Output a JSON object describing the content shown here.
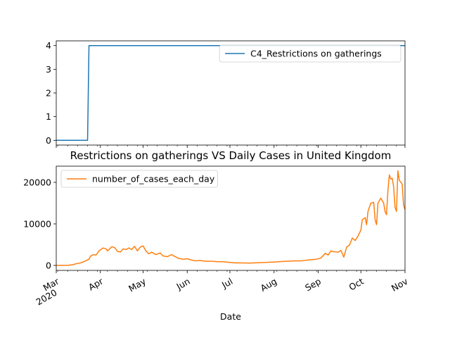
{
  "title": "Restrictions on gatherings VS Daily Cases in United Kingdom",
  "chart_data": [
    {
      "type": "line",
      "series": [
        {
          "name": "C4_Restrictions on gatherings",
          "color": "#1f77b4",
          "points": [
            [
              "2020-03-01",
              0
            ],
            [
              "2020-03-23",
              0
            ],
            [
              "2020-03-24",
              4
            ],
            [
              "2020-11-01",
              4
            ]
          ]
        }
      ],
      "ylim": [
        -0.2,
        4.2
      ],
      "yticks": [
        0,
        1,
        2,
        3,
        4
      ],
      "xlim": [
        "2020-03-01",
        "2020-11-01"
      ],
      "legend": "upper right",
      "grid": false
    },
    {
      "type": "line",
      "series": [
        {
          "name": "number_of_cases_each_day",
          "color": "#ff7f0e",
          "points": [
            [
              "2020-03-01",
              0
            ],
            [
              "2020-03-05",
              20
            ],
            [
              "2020-03-10",
              60
            ],
            [
              "2020-03-13",
              200
            ],
            [
              "2020-03-15",
              400
            ],
            [
              "2020-03-18",
              600
            ],
            [
              "2020-03-21",
              1000
            ],
            [
              "2020-03-24",
              1500
            ],
            [
              "2020-03-25",
              2200
            ],
            [
              "2020-03-27",
              2600
            ],
            [
              "2020-03-29",
              2500
            ],
            [
              "2020-03-31",
              3500
            ],
            [
              "2020-04-03",
              4200
            ],
            [
              "2020-04-05",
              4000
            ],
            [
              "2020-04-06",
              3500
            ],
            [
              "2020-04-07",
              3800
            ],
            [
              "2020-04-09",
              4500
            ],
            [
              "2020-04-11",
              4300
            ],
            [
              "2020-04-13",
              3400
            ],
            [
              "2020-04-15",
              3200
            ],
            [
              "2020-04-17",
              4000
            ],
            [
              "2020-04-19",
              3800
            ],
            [
              "2020-04-21",
              4200
            ],
            [
              "2020-04-23",
              3800
            ],
            [
              "2020-04-25",
              4600
            ],
            [
              "2020-04-27",
              3500
            ],
            [
              "2020-04-29",
              4400
            ],
            [
              "2020-05-01",
              4700
            ],
            [
              "2020-05-03",
              3500
            ],
            [
              "2020-05-05",
              2800
            ],
            [
              "2020-05-07",
              3200
            ],
            [
              "2020-05-10",
              2600
            ],
            [
              "2020-05-13",
              3000
            ],
            [
              "2020-05-15",
              2300
            ],
            [
              "2020-05-18",
              2100
            ],
            [
              "2020-05-21",
              2600
            ],
            [
              "2020-05-23",
              2200
            ],
            [
              "2020-05-26",
              1700
            ],
            [
              "2020-05-29",
              1500
            ],
            [
              "2020-06-01",
              1600
            ],
            [
              "2020-06-04",
              1300
            ],
            [
              "2020-06-07",
              1100
            ],
            [
              "2020-06-10",
              1200
            ],
            [
              "2020-06-14",
              1000
            ],
            [
              "2020-06-18",
              1000
            ],
            [
              "2020-06-22",
              900
            ],
            [
              "2020-06-26",
              900
            ],
            [
              "2020-06-30",
              750
            ],
            [
              "2020-07-05",
              600
            ],
            [
              "2020-07-10",
              600
            ],
            [
              "2020-07-15",
              550
            ],
            [
              "2020-07-20",
              650
            ],
            [
              "2020-07-25",
              700
            ],
            [
              "2020-07-31",
              800
            ],
            [
              "2020-08-05",
              900
            ],
            [
              "2020-08-10",
              1000
            ],
            [
              "2020-08-15",
              1100
            ],
            [
              "2020-08-20",
              1100
            ],
            [
              "2020-08-25",
              1300
            ],
            [
              "2020-08-31",
              1500
            ],
            [
              "2020-09-03",
              1800
            ],
            [
              "2020-09-06",
              2900
            ],
            [
              "2020-09-08",
              2500
            ],
            [
              "2020-09-10",
              3500
            ],
            [
              "2020-09-12",
              3300
            ],
            [
              "2020-09-15",
              3200
            ],
            [
              "2020-09-17",
              3600
            ],
            [
              "2020-09-19",
              2000
            ],
            [
              "2020-09-21",
              4400
            ],
            [
              "2020-09-23",
              4900
            ],
            [
              "2020-09-25",
              6600
            ],
            [
              "2020-09-27",
              6000
            ],
            [
              "2020-09-29",
              7100
            ],
            [
              "2020-10-01",
              8500
            ],
            [
              "2020-10-02",
              11000
            ],
            [
              "2020-10-04",
              11500
            ],
            [
              "2020-10-05",
              9800
            ],
            [
              "2020-10-06",
              13000
            ],
            [
              "2020-10-08",
              15000
            ],
            [
              "2020-10-10",
              15200
            ],
            [
              "2020-10-11",
              11000
            ],
            [
              "2020-10-12",
              9800
            ],
            [
              "2020-10-13",
              15000
            ],
            [
              "2020-10-15",
              16200
            ],
            [
              "2020-10-17",
              15000
            ],
            [
              "2020-10-18",
              13000
            ],
            [
              "2020-10-19",
              12200
            ],
            [
              "2020-10-20",
              18000
            ],
            [
              "2020-10-21",
              21800
            ],
            [
              "2020-10-22",
              20800
            ],
            [
              "2020-10-23",
              21000
            ],
            [
              "2020-10-24",
              19000
            ],
            [
              "2020-10-25",
              14000
            ],
            [
              "2020-10-26",
              13000
            ],
            [
              "2020-10-27",
              22800
            ],
            [
              "2020-10-28",
              20500
            ],
            [
              "2020-10-30",
              19600
            ],
            [
              "2020-10-31",
              14500
            ],
            [
              "2020-11-01",
              13500
            ]
          ]
        }
      ],
      "ylim": [
        -1200,
        23900
      ],
      "yticks": [
        0,
        10000,
        20000
      ],
      "xlim": [
        "2020-03-01",
        "2020-11-01"
      ],
      "xticks": [
        {
          "date": "2020-03-01",
          "label": "Mar",
          "sublabel": "2020"
        },
        {
          "date": "2020-04-01",
          "label": "Apr"
        },
        {
          "date": "2020-05-01",
          "label": "May"
        },
        {
          "date": "2020-06-01",
          "label": "Jun"
        },
        {
          "date": "2020-07-01",
          "label": "Jul"
        },
        {
          "date": "2020-08-01",
          "label": "Aug"
        },
        {
          "date": "2020-09-01",
          "label": "Sep"
        },
        {
          "date": "2020-10-01",
          "label": "Oct"
        },
        {
          "date": "2020-11-01",
          "label": "Nov"
        }
      ],
      "xlabel": "Date",
      "legend": "upper left",
      "grid": false
    }
  ]
}
